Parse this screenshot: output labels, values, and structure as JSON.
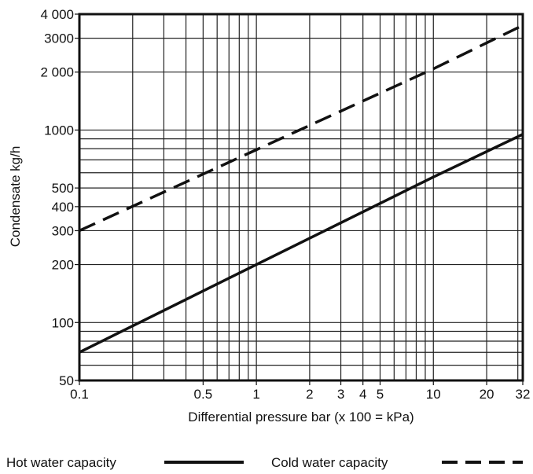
{
  "chart_data": {
    "type": "line",
    "title": "",
    "xlabel": "Differential pressure bar (x 100 = kPa)",
    "ylabel": "Condensate kg/h",
    "x_scale": "log",
    "y_scale": "log",
    "xlim": [
      0.1,
      32
    ],
    "ylim": [
      50,
      4000
    ],
    "grid": true,
    "x_ticks": [
      {
        "v": 0.1,
        "label": "0.1"
      },
      {
        "v": 0.5,
        "label": "0.5"
      },
      {
        "v": 1,
        "label": "1"
      },
      {
        "v": 2,
        "label": "2"
      },
      {
        "v": 3,
        "label": "3"
      },
      {
        "v": 4,
        "label": "4"
      },
      {
        "v": 5,
        "label": "5"
      },
      {
        "v": 10,
        "label": "10"
      },
      {
        "v": 20,
        "label": "20"
      },
      {
        "v": 32,
        "label": "32"
      }
    ],
    "y_ticks": [
      {
        "v": 50,
        "label": "50"
      },
      {
        "v": 100,
        "label": "100"
      },
      {
        "v": 200,
        "label": "200"
      },
      {
        "v": 300,
        "label": "300"
      },
      {
        "v": 400,
        "label": "400"
      },
      {
        "v": 500,
        "label": "500"
      },
      {
        "v": 1000,
        "label": "1000"
      },
      {
        "v": 2000,
        "label": "2 000"
      },
      {
        "v": 3000,
        "label": "3000"
      },
      {
        "v": 4000,
        "label": "4 000"
      }
    ],
    "x_grid": [
      0.2,
      0.3,
      0.4,
      0.5,
      0.6,
      0.7,
      0.8,
      0.9,
      1,
      2,
      3,
      4,
      5,
      6,
      7,
      8,
      9,
      10,
      20,
      30
    ],
    "y_grid": [
      60,
      70,
      80,
      90,
      100,
      200,
      300,
      400,
      500,
      600,
      700,
      800,
      900,
      1000,
      2000,
      3000
    ],
    "series": [
      {
        "name": "Hot water capacity",
        "style": "solid",
        "x": [
          0.1,
          1,
          10,
          32
        ],
        "y": [
          70,
          200,
          570,
          950
        ]
      },
      {
        "name": "Cold water capacity",
        "style": "dashed",
        "x": [
          0.1,
          1,
          10,
          32
        ],
        "y": [
          300,
          790,
          2080,
          3500
        ]
      }
    ],
    "legend_position": "bottom"
  }
}
